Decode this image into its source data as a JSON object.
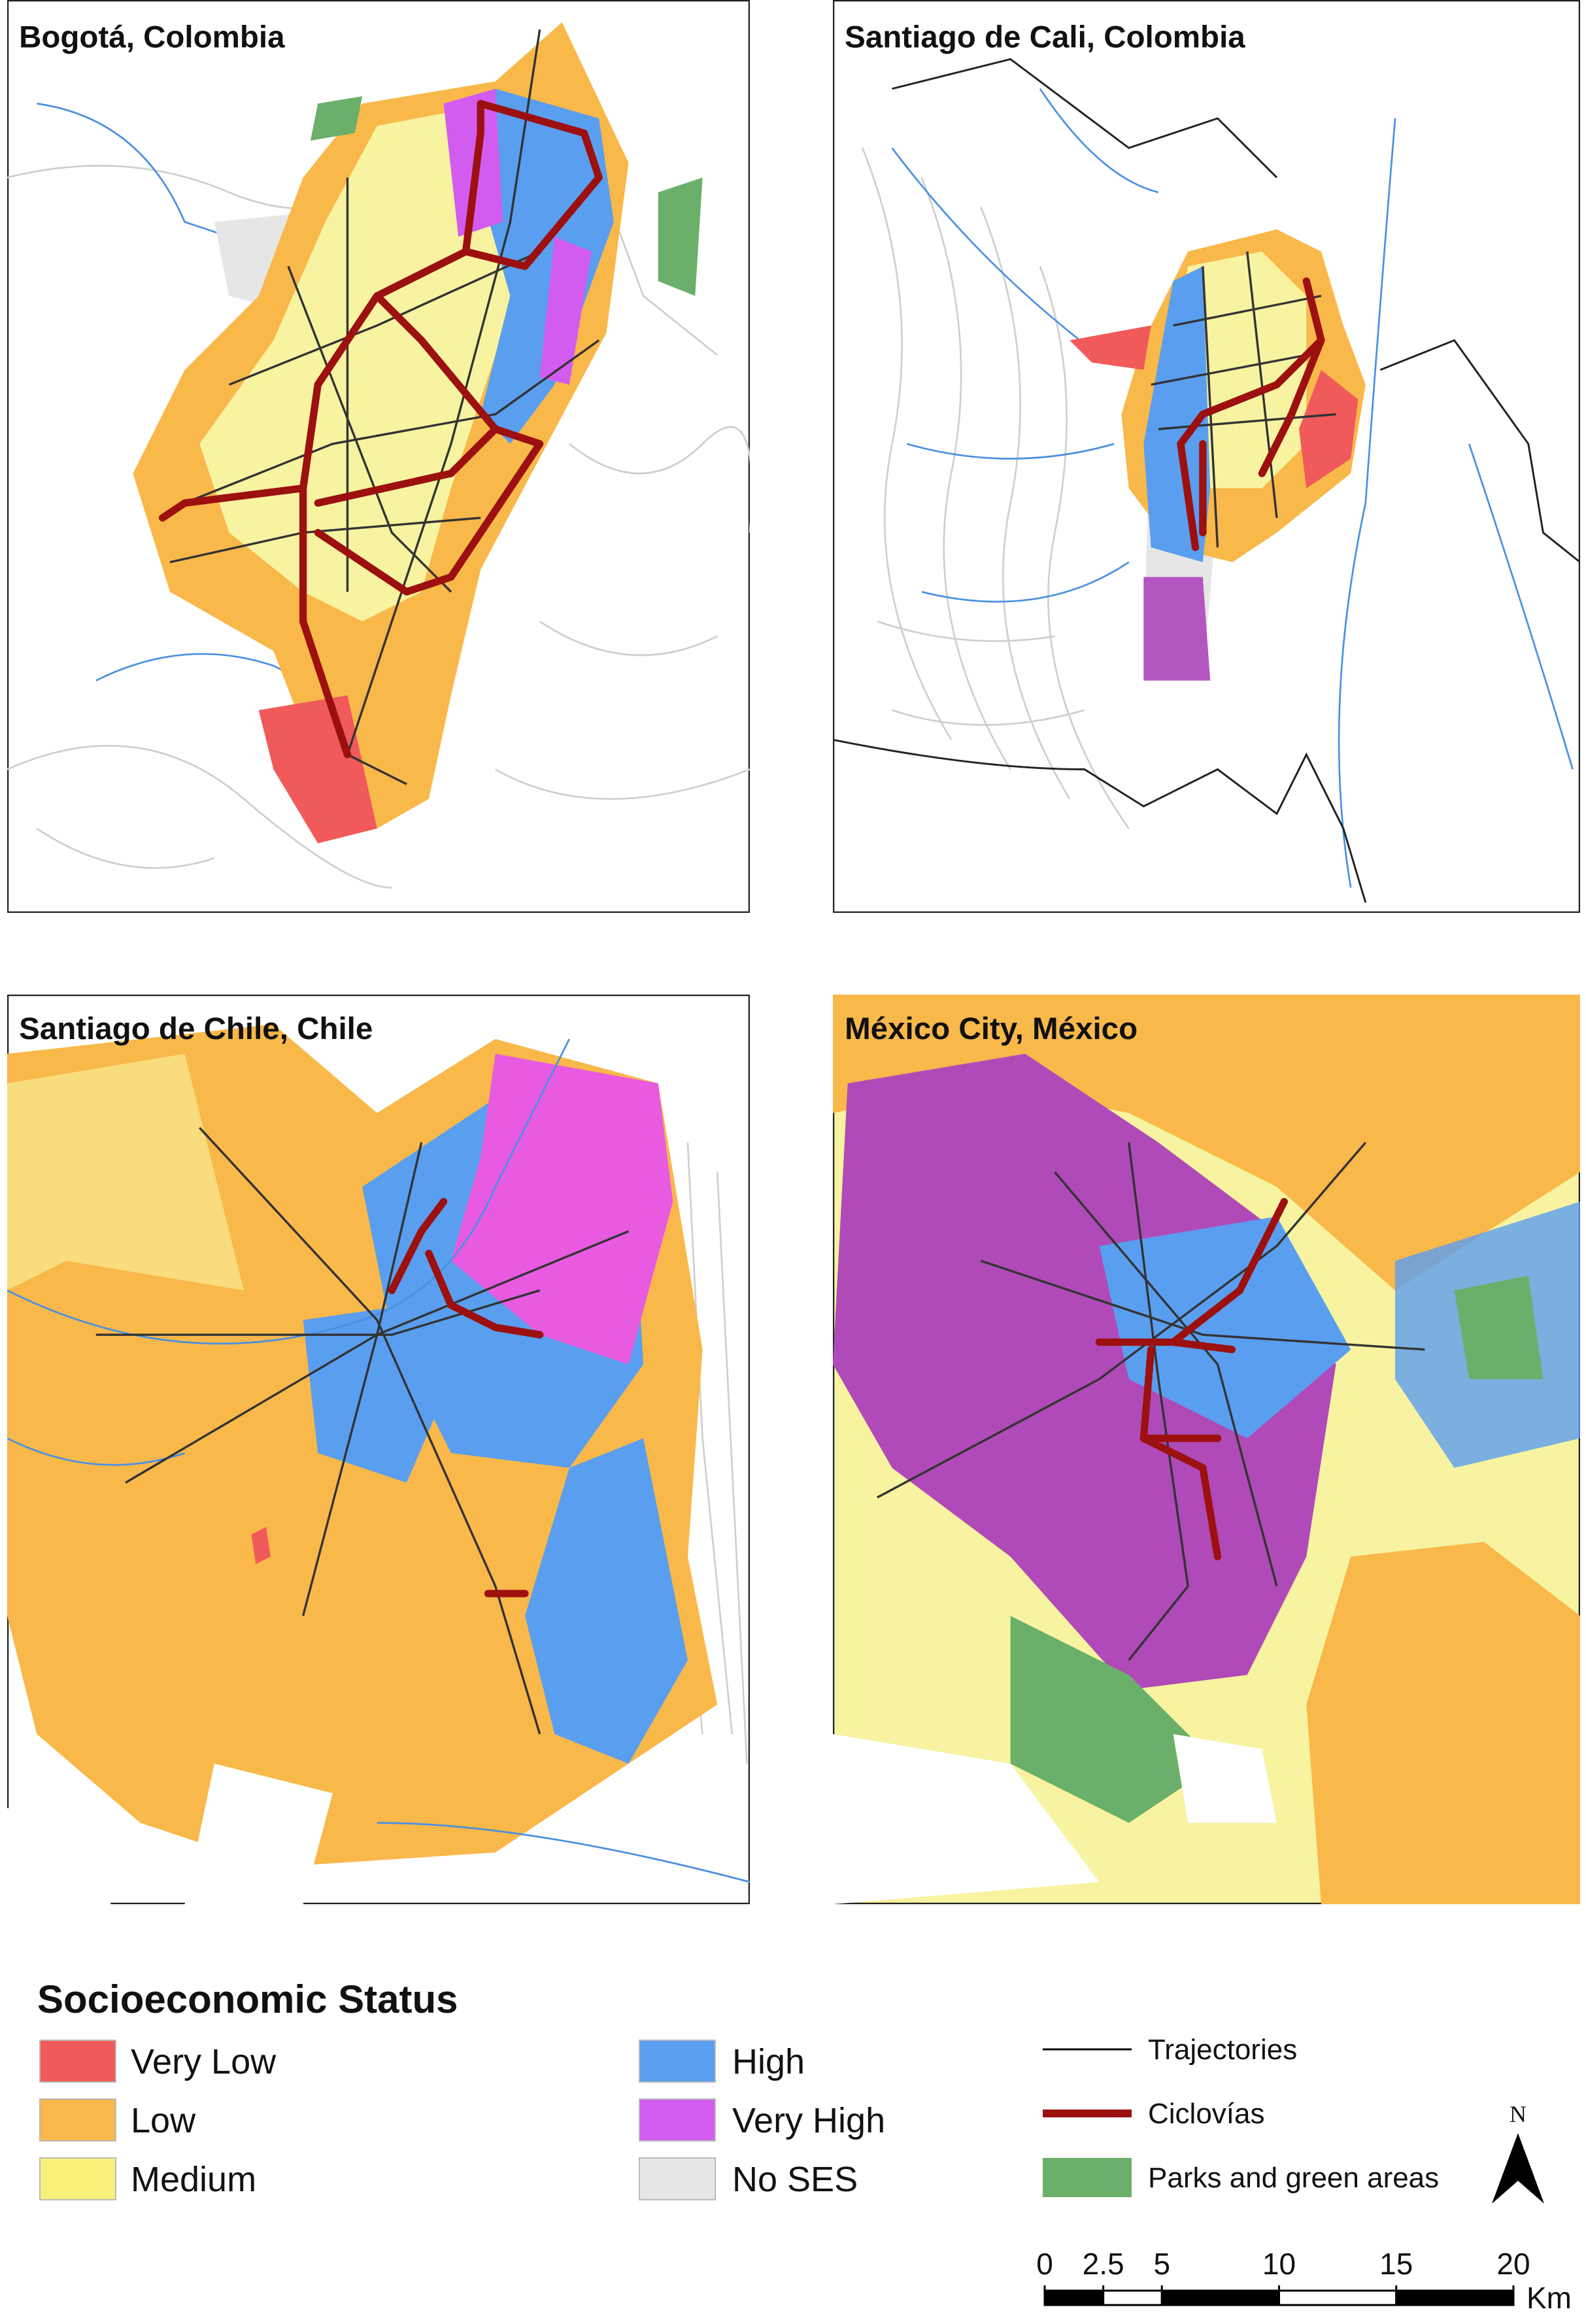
{
  "panels": [
    {
      "title": "Bogotá, Colombia"
    },
    {
      "title": "Santiago de Cali, Colombia"
    },
    {
      "title": "Santiago de Chile, Chile"
    },
    {
      "title": "México City, México"
    }
  ],
  "legend": {
    "title": "Socioeconomic Status",
    "ses": [
      "Very Low",
      "Low",
      "Medium",
      "High",
      "Very High",
      "No SES"
    ],
    "features": [
      "Trajectories",
      "Ciclovías",
      "Parks and green areas"
    ]
  },
  "north": "N",
  "scale": {
    "ticks": [
      0,
      2.5,
      5,
      10,
      15,
      20
    ],
    "unit": "Km"
  }
}
